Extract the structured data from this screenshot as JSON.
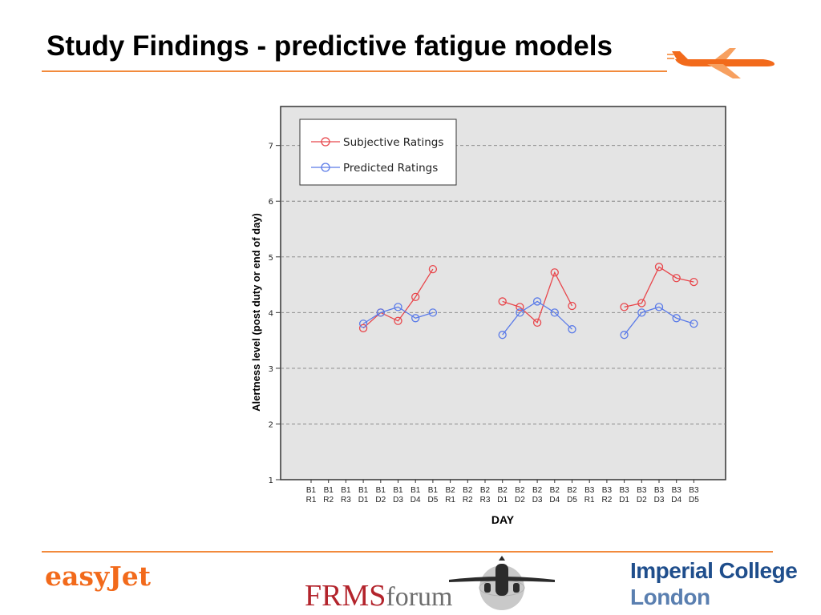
{
  "slide": {
    "title": "Study Findings - predictive fatigue models"
  },
  "logos": {
    "easyjet": "easyJet",
    "frms_a": "FRMS",
    "frms_b": "forum",
    "imperial_line1": "Imperial College",
    "imperial_line2": "London"
  },
  "colors": {
    "accent": "#f28a3c",
    "subjective": "#e8474c",
    "predicted": "#5b7be8"
  },
  "chart_data": {
    "type": "line",
    "xlabel": "DAY",
    "ylabel": "Alertness level (post duty or end of day)",
    "ylim": [
      1,
      7.7
    ],
    "yticks": [
      1,
      2,
      3,
      4,
      5,
      6,
      7
    ],
    "grid": "horizontal dashed",
    "legend": "top-left",
    "categories": [
      [
        "B1",
        "R1"
      ],
      [
        "B1",
        "R2"
      ],
      [
        "B1",
        "R3"
      ],
      [
        "B1",
        "D1"
      ],
      [
        "B1",
        "D2"
      ],
      [
        "B1",
        "D3"
      ],
      [
        "B1",
        "D4"
      ],
      [
        "B1",
        "D5"
      ],
      [
        "B2",
        "R1"
      ],
      [
        "B2",
        "R2"
      ],
      [
        "B2",
        "R3"
      ],
      [
        "B2",
        "D1"
      ],
      [
        "B2",
        "D2"
      ],
      [
        "B2",
        "D3"
      ],
      [
        "B2",
        "D4"
      ],
      [
        "B2",
        "D5"
      ],
      [
        "B3",
        "R1"
      ],
      [
        "B3",
        "R2"
      ],
      [
        "B3",
        "D1"
      ],
      [
        "B3",
        "D2"
      ],
      [
        "B3",
        "D3"
      ],
      [
        "B3",
        "D4"
      ],
      [
        "B3",
        "D5"
      ]
    ],
    "series": [
      {
        "name": "Subjective Ratings",
        "color": "#e8474c",
        "values": [
          null,
          null,
          null,
          3.72,
          4.0,
          3.85,
          4.28,
          4.78,
          null,
          null,
          null,
          4.2,
          4.1,
          3.82,
          4.72,
          4.12,
          null,
          null,
          4.1,
          4.17,
          4.82,
          4.62,
          4.55
        ]
      },
      {
        "name": "Predicted Ratings",
        "color": "#5b7be8",
        "values": [
          null,
          null,
          null,
          3.8,
          4.0,
          4.1,
          3.9,
          4.0,
          null,
          null,
          null,
          3.6,
          4.0,
          4.2,
          4.0,
          3.7,
          null,
          null,
          3.6,
          4.0,
          4.1,
          3.9,
          3.8
        ]
      }
    ]
  }
}
